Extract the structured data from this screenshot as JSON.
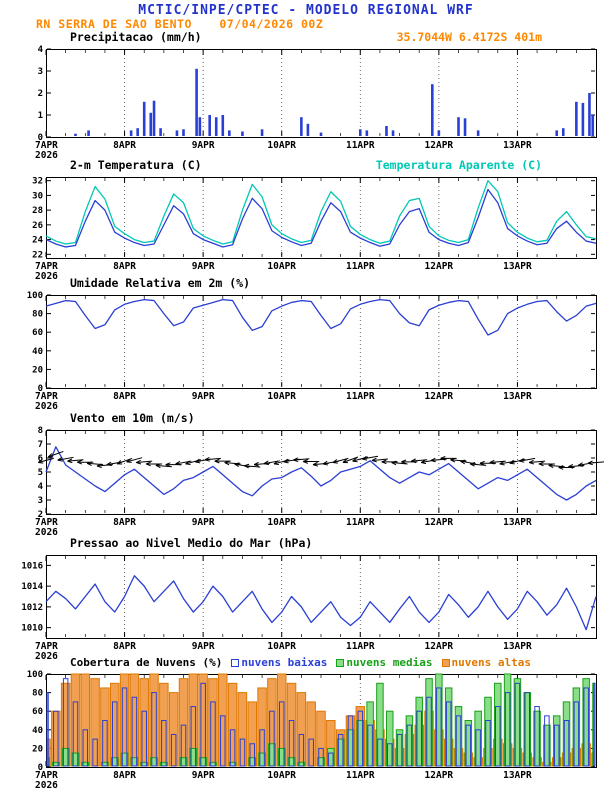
{
  "header": {
    "line1": "MCTIC/INPE/CPTEC - MODELO REGIONAL WRF",
    "station": "RN SERRA DE SAO BENTO",
    "run": "07/04/2026 00Z",
    "location": "35.7044W 6.4172S 401m"
  },
  "colors": {
    "title_blue": "#2233cc",
    "subtitle_orange": "#ff8800",
    "apparent_cyan": "#00c8b4",
    "line_blue": "#2a3fd4",
    "frame_black": "#000000"
  },
  "axis": {
    "x_hours": 168,
    "minor_step_hours": 6,
    "xticks": [
      {
        "h": 0,
        "label": "7APR",
        "year": "2026"
      },
      {
        "h": 24,
        "label": "8APR"
      },
      {
        "h": 48,
        "label": "9APR"
      },
      {
        "h": 72,
        "label": "10APR"
      },
      {
        "h": 96,
        "label": "11APR"
      },
      {
        "h": 120,
        "label": "12APR"
      },
      {
        "h": 144,
        "label": "13APR"
      }
    ]
  },
  "chart_data": [
    {
      "id": "precip",
      "type": "bar",
      "title": "Precipitacao (mm/h)",
      "ylim": [
        0,
        4
      ],
      "yticks": [
        0,
        1,
        2,
        3,
        4
      ],
      "bar_color": "#2a3fd4",
      "bars": [
        [
          9,
          0.15
        ],
        [
          13,
          0.3
        ],
        [
          26,
          0.3
        ],
        [
          28,
          0.4
        ],
        [
          30,
          1.6
        ],
        [
          32,
          1.1
        ],
        [
          33,
          1.65
        ],
        [
          35,
          0.4
        ],
        [
          40,
          0.3
        ],
        [
          42,
          0.35
        ],
        [
          46,
          3.1
        ],
        [
          47,
          0.9
        ],
        [
          50,
          1.0
        ],
        [
          52,
          0.9
        ],
        [
          54,
          1.0
        ],
        [
          56,
          0.3
        ],
        [
          60,
          0.25
        ],
        [
          66,
          0.35
        ],
        [
          78,
          0.9
        ],
        [
          80,
          0.6
        ],
        [
          84,
          0.2
        ],
        [
          96,
          0.35
        ],
        [
          98,
          0.3
        ],
        [
          104,
          0.5
        ],
        [
          106,
          0.3
        ],
        [
          118,
          2.4
        ],
        [
          120,
          0.3
        ],
        [
          126,
          0.9
        ],
        [
          128,
          0.85
        ],
        [
          132,
          0.3
        ],
        [
          156,
          0.3
        ],
        [
          158,
          0.4
        ],
        [
          162,
          1.6
        ],
        [
          164,
          1.55
        ],
        [
          166,
          2.0
        ],
        [
          167,
          1.0
        ]
      ]
    },
    {
      "id": "temp",
      "type": "line",
      "title": "2-m Temperatura (C)",
      "legend_label": "Temperatura Aparente (C)",
      "legend_color": "#00c8b4",
      "ylim": [
        21.5,
        32.5
      ],
      "yticks": [
        22,
        24,
        26,
        28,
        30,
        32
      ],
      "x_step_hours": 3,
      "series": [
        {
          "name": "2-m Temperatura (C)",
          "color": "#2a3fd4",
          "values": [
            24.0,
            23.4,
            23.0,
            23.2,
            26.5,
            29.3,
            28.0,
            25.0,
            24.2,
            23.6,
            23.2,
            23.4,
            26.0,
            28.6,
            27.5,
            24.8,
            24.0,
            23.5,
            23.0,
            23.3,
            26.8,
            29.6,
            28.2,
            25.2,
            24.3,
            23.7,
            23.2,
            23.5,
            26.5,
            29.0,
            27.8,
            25.0,
            24.2,
            23.6,
            23.1,
            23.4,
            26.0,
            27.8,
            28.2,
            25.0,
            24.0,
            23.5,
            23.2,
            23.6,
            27.0,
            30.8,
            29.0,
            25.5,
            24.5,
            23.8,
            23.3,
            23.5,
            25.5,
            26.5,
            25.0,
            23.8,
            23.5
          ]
        },
        {
          "name": "Temperatura Aparente (C)",
          "color": "#00c8b4",
          "values": [
            24.5,
            23.8,
            23.4,
            23.6,
            27.8,
            31.2,
            29.5,
            25.8,
            24.8,
            24.0,
            23.6,
            23.8,
            27.2,
            30.2,
            29.0,
            25.5,
            24.5,
            23.9,
            23.4,
            23.7,
            28.0,
            31.5,
            29.8,
            26.0,
            24.8,
            24.1,
            23.6,
            23.9,
            27.8,
            30.5,
            29.2,
            25.8,
            24.7,
            24.0,
            23.5,
            23.8,
            27.2,
            29.3,
            29.6,
            25.8,
            24.5,
            23.9,
            23.6,
            24.0,
            28.3,
            32.0,
            30.5,
            26.3,
            25.0,
            24.2,
            23.7,
            23.9,
            26.5,
            27.8,
            26.0,
            24.4,
            24.1
          ]
        }
      ]
    },
    {
      "id": "hum",
      "type": "line",
      "title": "Umidade Relativa em 2m (%)",
      "ylim": [
        0,
        100
      ],
      "yticks": [
        0,
        20,
        40,
        60,
        80,
        100
      ],
      "x_step_hours": 3,
      "series": [
        {
          "name": "Umidade Relativa em 2m (%)",
          "color": "#2a3fd4",
          "values": [
            88,
            91,
            94,
            93,
            78,
            64,
            68,
            84,
            90,
            93,
            95,
            94,
            80,
            67,
            71,
            86,
            89,
            92,
            95,
            94,
            76,
            62,
            66,
            83,
            88,
            92,
            94,
            93,
            78,
            64,
            69,
            85,
            90,
            93,
            95,
            94,
            80,
            70,
            67,
            84,
            89,
            92,
            94,
            93,
            74,
            57,
            62,
            80,
            86,
            90,
            93,
            94,
            82,
            72,
            78,
            88,
            91
          ]
        }
      ]
    },
    {
      "id": "wind",
      "type": "line+barbs",
      "title": "Vento em 10m (m/s)",
      "ylim": [
        2,
        8
      ],
      "yticks": [
        2,
        3,
        4,
        5,
        6,
        7,
        8
      ],
      "x_step_hours": 3,
      "barb_color": "#000000",
      "barb_dirs": [
        195,
        200,
        190,
        185,
        180,
        175,
        185,
        190,
        200,
        195,
        185,
        180,
        175,
        180,
        190,
        195,
        190,
        185,
        180,
        175,
        170,
        175,
        185,
        190,
        195,
        190,
        185,
        180,
        185,
        190,
        195,
        200,
        195,
        190,
        185,
        180,
        175,
        180,
        185,
        190,
        185,
        180,
        175,
        170,
        175,
        180,
        185,
        190,
        195,
        190,
        185,
        180,
        175,
        180,
        185,
        190,
        185
      ],
      "series": [
        {
          "name": "Vento em 10m (m/s)",
          "color": "#2a3fd4",
          "values": [
            5.0,
            6.8,
            5.5,
            5.0,
            4.5,
            4.0,
            3.6,
            4.2,
            4.8,
            5.2,
            4.6,
            4.0,
            3.4,
            3.8,
            4.4,
            4.6,
            5.0,
            5.4,
            4.8,
            4.2,
            3.6,
            3.3,
            4.0,
            4.5,
            4.6,
            5.0,
            5.3,
            4.7,
            4.0,
            4.4,
            5.0,
            5.2,
            5.4,
            5.8,
            5.2,
            4.6,
            4.2,
            4.6,
            5.0,
            4.8,
            5.2,
            5.6,
            5.0,
            4.4,
            3.8,
            4.2,
            4.6,
            4.4,
            4.8,
            5.2,
            4.6,
            4.0,
            3.4,
            3.0,
            3.4,
            4.0,
            4.4
          ]
        }
      ]
    },
    {
      "id": "press",
      "type": "line",
      "title": "Pressao ao Nivel Medio do Mar (hPa)",
      "ylim": [
        1009,
        1017
      ],
      "yticks": [
        1010,
        1012,
        1014,
        1016
      ],
      "x_step_hours": 3,
      "series": [
        {
          "name": "Pressao ao Nivel Medio do Mar (hPa)",
          "color": "#2a3fd4",
          "values": [
            1012.5,
            1013.5,
            1012.8,
            1011.8,
            1013.0,
            1014.2,
            1012.5,
            1011.5,
            1013.0,
            1015.0,
            1014.0,
            1012.5,
            1013.5,
            1014.5,
            1012.8,
            1011.5,
            1012.5,
            1014.0,
            1013.0,
            1011.5,
            1012.5,
            1013.5,
            1011.8,
            1010.5,
            1011.5,
            1013.0,
            1012.0,
            1010.5,
            1011.5,
            1012.5,
            1011.0,
            1010.2,
            1011.0,
            1012.5,
            1011.5,
            1010.5,
            1011.8,
            1013.0,
            1011.5,
            1010.5,
            1011.5,
            1013.2,
            1012.2,
            1011.0,
            1012.0,
            1013.5,
            1012.0,
            1010.8,
            1011.8,
            1013.5,
            1012.5,
            1011.2,
            1012.2,
            1013.8,
            1012.0,
            1009.8,
            1013.0
          ]
        }
      ]
    },
    {
      "id": "clouds",
      "type": "bar-multi",
      "title": "Cobertura de Nuvens (%)",
      "ylim": [
        0,
        100
      ],
      "yticks": [
        0,
        20,
        40,
        60,
        80,
        100
      ],
      "x_step_hours": 3,
      "series": [
        {
          "name": "nuvens baixas",
          "stroke": "#2a3fd4",
          "fill": "none",
          "values": [
            80,
            60,
            95,
            70,
            40,
            30,
            50,
            70,
            85,
            75,
            60,
            80,
            50,
            35,
            45,
            65,
            90,
            70,
            55,
            40,
            30,
            25,
            40,
            60,
            70,
            50,
            35,
            30,
            20,
            15,
            35,
            55,
            60,
            45,
            30,
            25,
            35,
            45,
            60,
            75,
            85,
            70,
            55,
            45,
            40,
            50,
            65,
            80,
            90,
            80,
            65,
            55,
            45,
            50,
            70,
            85,
            90
          ]
        },
        {
          "name": "nuvens medias",
          "stroke": "#18a018",
          "fill": "#8ade8a",
          "values": [
            10,
            5,
            20,
            15,
            5,
            0,
            5,
            10,
            15,
            10,
            5,
            10,
            5,
            0,
            10,
            20,
            10,
            5,
            0,
            5,
            0,
            10,
            15,
            25,
            20,
            10,
            5,
            0,
            10,
            20,
            30,
            40,
            50,
            70,
            90,
            60,
            40,
            55,
            75,
            95,
            100,
            85,
            65,
            50,
            60,
            75,
            90,
            100,
            95,
            80,
            60,
            45,
            55,
            70,
            85,
            95,
            90
          ]
        },
        {
          "name": "nuvens altas",
          "stroke": "#e07800",
          "fill": "#f0a050",
          "values": [
            30,
            60,
            90,
            100,
            100,
            95,
            85,
            90,
            100,
            100,
            95,
            100,
            90,
            80,
            95,
            100,
            100,
            95,
            100,
            90,
            80,
            70,
            85,
            95,
            100,
            90,
            80,
            70,
            60,
            50,
            40,
            55,
            65,
            50,
            40,
            30,
            20,
            35,
            45,
            60,
            40,
            30,
            20,
            15,
            10,
            20,
            30,
            25,
            20,
            15,
            10,
            5,
            10,
            15,
            20,
            25,
            15
          ]
        }
      ]
    }
  ]
}
